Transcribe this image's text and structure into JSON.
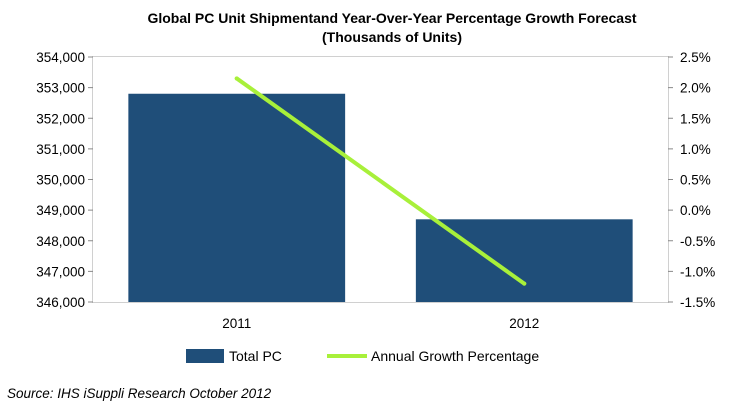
{
  "chart_data": {
    "type": "bar",
    "title": "Global PC Unit Shipmentand Year-Over-Year Percentage Growth Forecast",
    "subtitle": "(Thousands of Units)",
    "categories": [
      "2011",
      "2012"
    ],
    "series": [
      {
        "name": "Total PC",
        "type": "bar",
        "axis": "left",
        "color": "#1f4e79",
        "values": [
          352800,
          348700
        ]
      },
      {
        "name": "Annual Growth Percentage",
        "type": "line",
        "axis": "right",
        "color": "#a8f03a",
        "values": [
          2.15,
          -1.2
        ]
      }
    ],
    "y_left": {
      "min": 346000,
      "max": 354000,
      "ticks": [
        346000,
        347000,
        348000,
        349000,
        350000,
        351000,
        352000,
        353000,
        354000
      ],
      "tick_labels": [
        "346,000",
        "347,000",
        "348,000",
        "349,000",
        "350,000",
        "351,000",
        "352,000",
        "353,000",
        "354,000"
      ]
    },
    "y_right": {
      "min": -1.5,
      "max": 2.5,
      "ticks": [
        -1.5,
        -1.0,
        -0.5,
        0.0,
        0.5,
        1.0,
        1.5,
        2.0,
        2.5
      ],
      "tick_labels": [
        "-1.5%",
        "-1.0%",
        "-0.5%",
        "0.0%",
        "0.5%",
        "1.0%",
        "1.5%",
        "2.0%",
        "2.5%"
      ]
    },
    "grid": false,
    "legend": "bottom"
  },
  "source": "Source: IHS iSuppli Research October 2012"
}
